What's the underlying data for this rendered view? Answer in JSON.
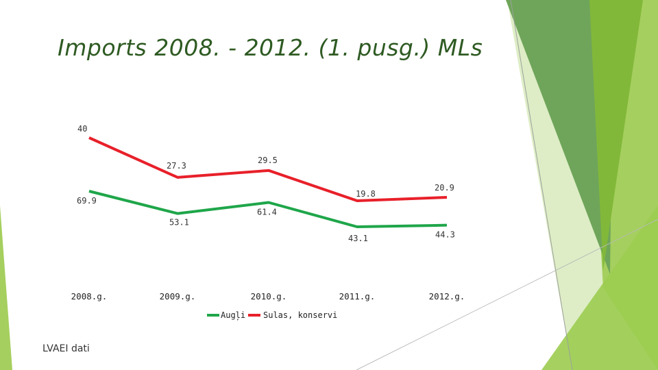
{
  "slide": {
    "title": "Imports 2008. - 2012. (1. pusg.) MLs",
    "source": "LVAEI dati"
  },
  "colors": {
    "accent_dark": "#4a8a2a",
    "accent_mid": "#76b041",
    "accent_light": "#a5cf5e",
    "accent_pale": "#d6e9b8",
    "title": "#2e5a22"
  },
  "chart_data": {
    "type": "line",
    "categories": [
      "2008.g.",
      "2009.g.",
      "2010.g.",
      "2011.g.",
      "2012.g."
    ],
    "series": [
      {
        "name": "Augļi",
        "color": "#1fa64a",
        "values": [
          69.9,
          53.1,
          61.4,
          43.1,
          44.3
        ]
      },
      {
        "name": "Sulas, konservi",
        "color": "#e8202a",
        "values": [
          40,
          27.3,
          29.5,
          19.8,
          20.9
        ]
      }
    ],
    "legend_position": "bottom",
    "grid": false,
    "y_axis_visible": false
  }
}
